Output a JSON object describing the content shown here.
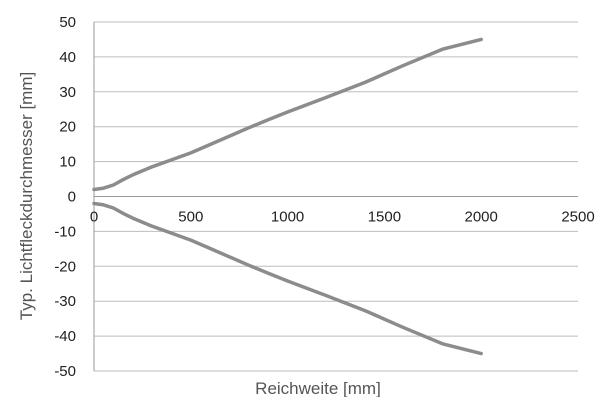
{
  "chart_data": {
    "type": "line",
    "title": "",
    "xlabel": "Reichweite [mm]",
    "ylabel": "Typ. Lichtfleckdurchmesser [mm]",
    "xlim": [
      0,
      2500
    ],
    "ylim": [
      -50,
      50
    ],
    "x_ticks": [
      "0",
      "500",
      "1000",
      "1500",
      "2000",
      "2500"
    ],
    "y_ticks": [
      "50",
      "40",
      "30",
      "20",
      "10",
      "0",
      "-10",
      "-20",
      "-30",
      "-40",
      "-50"
    ],
    "grid": "horizontal",
    "line_color": "#8c8c8c",
    "series": [
      {
        "x": [
          0,
          50,
          100,
          150,
          200,
          300,
          400,
          500,
          600,
          700,
          800,
          900,
          1000,
          1200,
          1400,
          1600,
          1800,
          2000
        ],
        "y": [
          2,
          2.4,
          3.3,
          4.8,
          6.2,
          8.5,
          10.5,
          12.5,
          14.9,
          17.3,
          19.7,
          22.0,
          24.2,
          28.4,
          32.7,
          37.6,
          42.2,
          45
        ]
      },
      {
        "x": [
          0,
          50,
          100,
          150,
          200,
          300,
          400,
          500,
          600,
          700,
          800,
          900,
          1000,
          1200,
          1400,
          1600,
          1800,
          2000
        ],
        "y": [
          -2,
          -2.4,
          -3.3,
          -4.8,
          -6.2,
          -8.5,
          -10.5,
          -12.5,
          -14.9,
          -17.3,
          -19.7,
          -22.0,
          -24.2,
          -28.4,
          -32.7,
          -37.6,
          -42.2,
          -45
        ]
      }
    ]
  }
}
